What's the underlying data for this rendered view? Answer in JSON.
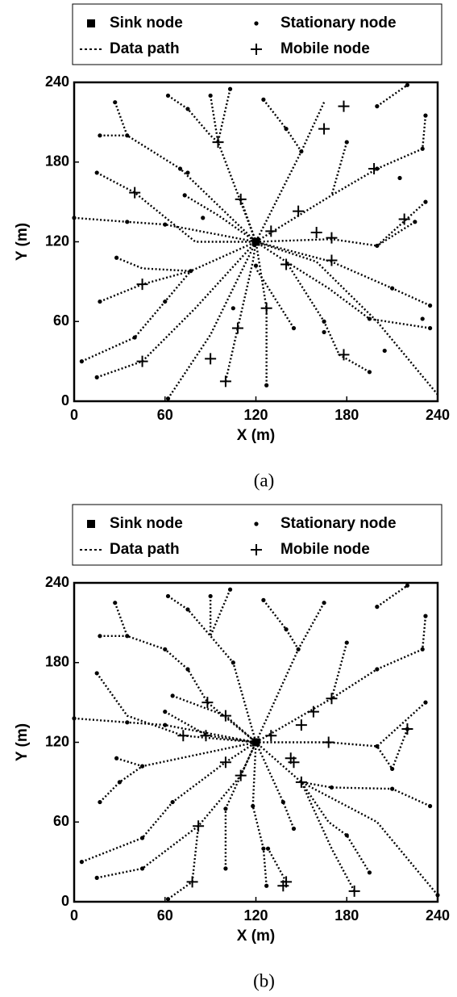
{
  "chart_data": [
    {
      "type": "network",
      "xlabel": "X (m)",
      "ylabel": "Y (m)",
      "caption": "(a)",
      "xlim": [
        0,
        240
      ],
      "ylim": [
        0,
        240
      ],
      "xticks": [
        0,
        60,
        120,
        180,
        240
      ],
      "yticks": [
        0,
        60,
        120,
        180,
        240
      ],
      "series": [
        {
          "name": "Sink node",
          "marker": "square",
          "color": "#000000",
          "x": [
            120
          ],
          "y": [
            120
          ]
        },
        {
          "name": "Stationary node",
          "marker": "dot",
          "color": "#000000",
          "x": [
            27,
            35,
            70,
            75,
            62,
            75,
            103,
            90,
            125,
            140,
            150,
            200,
            220,
            232,
            230,
            200,
            17,
            15,
            0,
            35,
            60,
            28,
            77,
            17,
            5,
            40,
            60,
            15,
            62,
            127,
            145,
            195,
            165,
            235,
            210,
            232,
            200,
            225,
            235,
            195,
            180,
            73,
            120,
            105,
            85,
            215,
            165,
            230,
            205
          ],
          "y": [
            225,
            200,
            175,
            172,
            230,
            220,
            235,
            230,
            227,
            205,
            188,
            222,
            238,
            215,
            190,
            175,
            200,
            172,
            138,
            135,
            133,
            108,
            98,
            75,
            30,
            48,
            75,
            18,
            2,
            12,
            55,
            22,
            60,
            72,
            85,
            150,
            117,
            135,
            55,
            62,
            195,
            155,
            102,
            70,
            138,
            168,
            52,
            62,
            38
          ]
        },
        {
          "name": "Data path",
          "marker": "dotted-line",
          "color": "#000000",
          "x": [
            27,
            35,
            70,
            120,
            null,
            62,
            75,
            90,
            95,
            120,
            null,
            103,
            95,
            null,
            90,
            95,
            null,
            125,
            140,
            150,
            120,
            null,
            165,
            150,
            null,
            200,
            220,
            null,
            232,
            230,
            200,
            170,
            120,
            null,
            17,
            35,
            null,
            15,
            40,
            80,
            120,
            null,
            0,
            35,
            60,
            120,
            null,
            28,
            45,
            77,
            120,
            null,
            17,
            45,
            77,
            null,
            5,
            40,
            60,
            77,
            null,
            15,
            45,
            80,
            120,
            null,
            62,
            90,
            120,
            null,
            100,
            108,
            118,
            120,
            null,
            127,
            127,
            120,
            null,
            145,
            120,
            null,
            195,
            175,
            165,
            140,
            120,
            null,
            240,
            200,
            160,
            120,
            null,
            235,
            210,
            170,
            120,
            null,
            232,
            200,
            170,
            120,
            null,
            225,
            200,
            null,
            235,
            195,
            168,
            140,
            null,
            180,
            170,
            null,
            110,
            120,
            null,
            73,
            95,
            120
          ],
          "y": [
            225,
            200,
            175,
            120,
            null,
            230,
            220,
            200,
            195,
            120,
            null,
            235,
            195,
            null,
            230,
            195,
            null,
            227,
            205,
            188,
            120,
            null,
            225,
            188,
            null,
            222,
            238,
            null,
            215,
            190,
            175,
            155,
            120,
            null,
            200,
            200,
            null,
            172,
            157,
            120,
            120,
            null,
            138,
            135,
            133,
            120,
            null,
            108,
            100,
            98,
            120,
            null,
            75,
            88,
            98,
            null,
            30,
            48,
            75,
            98,
            null,
            18,
            30,
            70,
            120,
            null,
            2,
            50,
            120,
            null,
            15,
            55,
            105,
            120,
            null,
            12,
            70,
            120,
            null,
            55,
            100,
            null,
            22,
            35,
            60,
            105,
            120,
            null,
            5,
            60,
            105,
            120,
            null,
            72,
            85,
            105,
            120,
            null,
            150,
            117,
            122,
            120,
            null,
            135,
            117,
            null,
            55,
            62,
            85,
            105,
            null,
            195,
            155,
            null,
            152,
            120,
            null,
            155,
            140,
            120
          ]
        },
        {
          "name": "Mobile node",
          "marker": "plus",
          "color": "#000000",
          "x": [
            40,
            45,
            45,
            90,
            100,
            108,
            127,
            110,
            130,
            148,
            160,
            170,
            170,
            140,
            178,
            165,
            178,
            218,
            95,
            198
          ],
          "y": [
            157,
            88,
            30,
            32,
            15,
            55,
            70,
            152,
            128,
            143,
            127,
            123,
            106,
            103,
            35,
            205,
            222,
            137,
            195,
            175
          ]
        }
      ]
    },
    {
      "type": "network",
      "xlabel": "X (m)",
      "ylabel": "Y (m)",
      "caption": "(b)",
      "xlim": [
        0,
        240
      ],
      "ylim": [
        0,
        240
      ],
      "xticks": [
        0,
        60,
        120,
        180,
        240
      ],
      "yticks": [
        0,
        60,
        120,
        180,
        240
      ],
      "series": [
        {
          "name": "Sink node",
          "marker": "square",
          "color": "#000000",
          "x": [
            120
          ],
          "y": [
            120
          ]
        },
        {
          "name": "Stationary node",
          "marker": "dot",
          "color": "#000000",
          "x": [
            27,
            35,
            60,
            75,
            62,
            75,
            103,
            90,
            125,
            140,
            148,
            165,
            200,
            220,
            232,
            230,
            200,
            17,
            15,
            0,
            35,
            60,
            28,
            45,
            17,
            30,
            5,
            45,
            65,
            15,
            45,
            62,
            100,
            100,
            127,
            125,
            118,
            145,
            138,
            195,
            180,
            240,
            235,
            210,
            170,
            232,
            200,
            220,
            210,
            180,
            65,
            60,
            105,
            128
          ],
          "y": [
            225,
            200,
            190,
            175,
            230,
            220,
            235,
            230,
            227,
            205,
            190,
            225,
            222,
            238,
            215,
            190,
            175,
            200,
            172,
            138,
            135,
            133,
            108,
            102,
            75,
            90,
            30,
            48,
            75,
            18,
            25,
            2,
            25,
            70,
            12,
            40,
            72,
            55,
            75,
            22,
            50,
            5,
            72,
            85,
            86,
            150,
            117,
            130,
            100,
            195,
            155,
            143,
            180,
            40
          ]
        },
        {
          "name": "Data path",
          "marker": "dotted-line",
          "color": "#000000",
          "x": [
            27,
            35,
            60,
            75,
            88,
            120,
            null,
            62,
            75,
            90,
            105,
            120,
            null,
            103,
            90,
            null,
            90,
            90,
            null,
            125,
            140,
            148,
            120,
            null,
            165,
            148,
            null,
            200,
            220,
            null,
            232,
            230,
            200,
            170,
            120,
            null,
            17,
            35,
            null,
            15,
            35,
            72,
            120,
            null,
            0,
            35,
            60,
            120,
            null,
            28,
            45,
            120,
            null,
            17,
            30,
            45,
            null,
            5,
            45,
            65,
            100,
            120,
            null,
            15,
            45,
            82,
            110,
            120,
            null,
            62,
            78,
            82,
            null,
            100,
            100,
            120,
            null,
            127,
            125,
            118,
            120,
            null,
            145,
            138,
            120,
            null,
            195,
            180,
            168,
            150,
            120,
            null,
            240,
            200,
            150,
            null,
            235,
            210,
            170,
            150,
            null,
            232,
            200,
            168,
            120,
            null,
            220,
            210,
            200,
            null,
            140,
            128,
            null,
            180,
            170,
            null,
            185,
            170,
            150,
            null,
            65,
            100,
            120,
            null,
            60,
            88,
            120
          ],
          "y": [
            225,
            200,
            190,
            175,
            150,
            120,
            null,
            230,
            220,
            200,
            180,
            120,
            null,
            235,
            200,
            null,
            230,
            200,
            null,
            227,
            205,
            190,
            120,
            null,
            225,
            190,
            null,
            222,
            238,
            null,
            215,
            190,
            175,
            153,
            120,
            null,
            200,
            200,
            null,
            172,
            140,
            125,
            120,
            null,
            138,
            135,
            133,
            120,
            null,
            108,
            102,
            120,
            null,
            75,
            90,
            102,
            null,
            30,
            48,
            75,
            105,
            120,
            null,
            18,
            25,
            57,
            95,
            120,
            null,
            2,
            15,
            57,
            null,
            25,
            70,
            120,
            null,
            12,
            40,
            72,
            120,
            null,
            55,
            75,
            120,
            null,
            22,
            50,
            60,
            90,
            120,
            null,
            5,
            60,
            90,
            null,
            72,
            85,
            86,
            90,
            null,
            150,
            117,
            120,
            120,
            null,
            130,
            100,
            117,
            null,
            15,
            40,
            null,
            195,
            153,
            null,
            8,
            40,
            90,
            null,
            155,
            140,
            120,
            null,
            143,
            125,
            120
          ]
        },
        {
          "name": "Mobile node",
          "marker": "plus",
          "color": "#000000",
          "x": [
            78,
            82,
            110,
            100,
            88,
            100,
            72,
            87,
            145,
            143,
            150,
            138,
            140,
            168,
            170,
            158,
            130,
            220,
            185,
            150
          ],
          "y": [
            15,
            57,
            95,
            105,
            150,
            140,
            125,
            125,
            105,
            108,
            90,
            12,
            15,
            120,
            153,
            143,
            125,
            130,
            8,
            133
          ]
        }
      ]
    }
  ]
}
